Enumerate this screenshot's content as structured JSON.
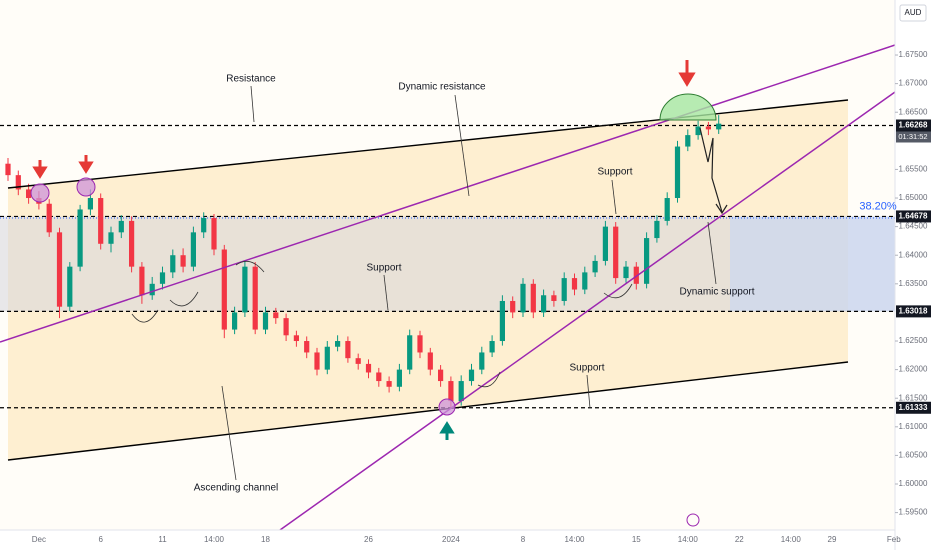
{
  "chart_data": {
    "type": "candlestick",
    "currency": "AUD",
    "up_color": "#089981",
    "down_color": "#f23645",
    "ylim": [
      1.59196,
      1.68462
    ],
    "yticks": [
      {
        "value": 1.675,
        "label": "1.67500"
      },
      {
        "value": 1.67,
        "label": "1.67000"
      },
      {
        "value": 1.665,
        "label": "1.66500"
      },
      {
        "value": 1.655,
        "label": "1.65500"
      },
      {
        "value": 1.65,
        "label": "1.65000"
      },
      {
        "value": 1.645,
        "label": "1.64500"
      },
      {
        "value": 1.64,
        "label": "1.64000"
      },
      {
        "value": 1.635,
        "label": "1.63500"
      },
      {
        "value": 1.625,
        "label": "1.62500"
      },
      {
        "value": 1.62,
        "label": "1.62000"
      },
      {
        "value": 1.615,
        "label": "1.61500"
      },
      {
        "value": 1.61,
        "label": "1.61000"
      },
      {
        "value": 1.605,
        "label": "1.60500"
      },
      {
        "value": 1.6,
        "label": "1.60000"
      },
      {
        "value": 1.595,
        "label": "1.59500"
      }
    ],
    "levels": [
      1.66268,
      1.64678,
      1.63018,
      1.61333
    ],
    "countdown": "01:31:52",
    "fib_label": "38.20%",
    "annotations": [
      "Resistance",
      "Dynamic resistance",
      "Support",
      "Support",
      "Dynamic support",
      "Support",
      "Ascending channel"
    ],
    "categories": [
      null,
      null,
      null,
      "Dec",
      null,
      null,
      null,
      null,
      null,
      "6",
      null,
      null,
      null,
      null,
      null,
      "11",
      null,
      null,
      null,
      null,
      "14:00",
      null,
      null,
      null,
      null,
      "18",
      null,
      null,
      null,
      null,
      null,
      null,
      null,
      null,
      null,
      "26",
      null,
      null,
      null,
      null,
      null,
      null,
      null,
      "2024",
      null,
      null,
      null,
      null,
      null,
      null,
      "8",
      null,
      null,
      null,
      null,
      "14:00",
      null,
      null,
      null,
      null,
      null,
      "15",
      null,
      null,
      null,
      null,
      "14:00",
      null,
      null,
      null,
      null,
      "22",
      null,
      null,
      null,
      null,
      "14:00",
      null,
      null,
      null,
      "29",
      null,
      null,
      null,
      null,
      null,
      "Feb"
    ],
    "open": [
      1.656,
      1.654,
      1.6515,
      1.65,
      1.649,
      1.644,
      1.631,
      1.638,
      1.648,
      1.65,
      1.642,
      1.644,
      1.646,
      1.638,
      1.633,
      1.635,
      1.637,
      1.64,
      1.638,
      1.644,
      1.6465,
      1.641,
      1.627,
      1.63,
      1.638,
      1.627,
      1.63,
      1.629,
      1.626,
      1.625,
      1.623,
      1.62,
      1.624,
      1.625,
      1.622,
      1.621,
      1.6195,
      1.618,
      1.617,
      1.62,
      1.626,
      1.623,
      1.62,
      1.618,
      1.6145,
      1.618,
      1.62,
      1.623,
      1.625,
      1.632,
      1.63,
      1.635,
      1.63,
      1.633,
      1.632,
      1.636,
      1.634,
      1.637,
      1.639,
      1.645,
      1.636,
      1.638,
      1.635,
      1.643,
      1.646,
      1.65,
      1.659,
      1.661,
      1.6625,
      1.662,
      null,
      null,
      null,
      null,
      null,
      null,
      null,
      null,
      null,
      null,
      null,
      null,
      null,
      null,
      null,
      null,
      null
    ],
    "high": [
      1.657,
      1.6548,
      1.6525,
      1.6512,
      1.6498,
      1.6448,
      1.6388,
      1.6488,
      1.6515,
      1.6508,
      1.645,
      1.647,
      1.6468,
      1.6388,
      1.6362,
      1.638,
      1.641,
      1.6412,
      1.645,
      1.6475,
      1.6472,
      1.6418,
      1.631,
      1.639,
      1.6388,
      1.631,
      1.6308,
      1.6298,
      1.6268,
      1.6258,
      1.6238,
      1.625,
      1.626,
      1.6258,
      1.6228,
      1.6218,
      1.6203,
      1.6188,
      1.621,
      1.627,
      1.6268,
      1.6238,
      1.6208,
      1.6188,
      1.619,
      1.621,
      1.624,
      1.626,
      1.633,
      1.6328,
      1.636,
      1.6358,
      1.634,
      1.6338,
      1.637,
      1.6368,
      1.638,
      1.64,
      1.646,
      1.6458,
      1.639,
      1.6388,
      1.644,
      1.647,
      1.651,
      1.66,
      1.662,
      1.6635,
      1.6633,
      1.6645,
      null,
      null,
      null,
      null,
      null,
      null,
      null,
      null,
      null,
      null,
      null,
      null,
      null,
      null,
      null,
      null,
      null
    ],
    "low": [
      1.653,
      1.6505,
      1.649,
      1.648,
      1.6432,
      1.629,
      1.6302,
      1.6372,
      1.647,
      1.641,
      1.6405,
      1.643,
      1.637,
      1.6315,
      1.6322,
      1.634,
      1.636,
      1.637,
      1.6372,
      1.643,
      1.64,
      1.6255,
      1.6262,
      1.6292,
      1.6262,
      1.6262,
      1.628,
      1.625,
      1.624,
      1.622,
      1.619,
      1.6192,
      1.6232,
      1.6212,
      1.62,
      1.6185,
      1.617,
      1.616,
      1.6162,
      1.6192,
      1.622,
      1.619,
      1.617,
      1.6133,
      1.6137,
      1.6172,
      1.6192,
      1.6222,
      1.6242,
      1.629,
      1.6292,
      1.629,
      1.6292,
      1.631,
      1.6312,
      1.633,
      1.6332,
      1.6362,
      1.6382,
      1.635,
      1.6352,
      1.634,
      1.6342,
      1.6422,
      1.6452,
      1.6492,
      1.6582,
      1.6602,
      1.661,
      1.6612,
      null,
      null,
      null,
      null,
      null,
      null,
      null,
      null,
      null,
      null,
      null,
      null,
      null,
      null,
      null,
      null,
      null
    ],
    "close": [
      1.654,
      1.6515,
      1.65,
      1.649,
      1.644,
      1.631,
      1.638,
      1.648,
      1.65,
      1.642,
      1.644,
      1.646,
      1.638,
      1.633,
      1.635,
      1.637,
      1.64,
      1.638,
      1.644,
      1.6465,
      1.641,
      1.627,
      1.63,
      1.638,
      1.627,
      1.63,
      1.629,
      1.626,
      1.625,
      1.623,
      1.62,
      1.624,
      1.625,
      1.622,
      1.621,
      1.6195,
      1.618,
      1.617,
      1.62,
      1.626,
      1.623,
      1.62,
      1.618,
      1.6145,
      1.618,
      1.62,
      1.623,
      1.625,
      1.632,
      1.63,
      1.635,
      1.63,
      1.633,
      1.632,
      1.636,
      1.634,
      1.637,
      1.639,
      1.645,
      1.636,
      1.638,
      1.635,
      1.643,
      1.646,
      1.65,
      1.659,
      1.661,
      1.6625,
      1.662,
      1.663,
      null,
      null,
      null,
      null,
      null,
      null,
      null,
      null,
      null,
      null,
      null,
      null,
      null,
      null,
      null,
      null,
      null
    ]
  }
}
